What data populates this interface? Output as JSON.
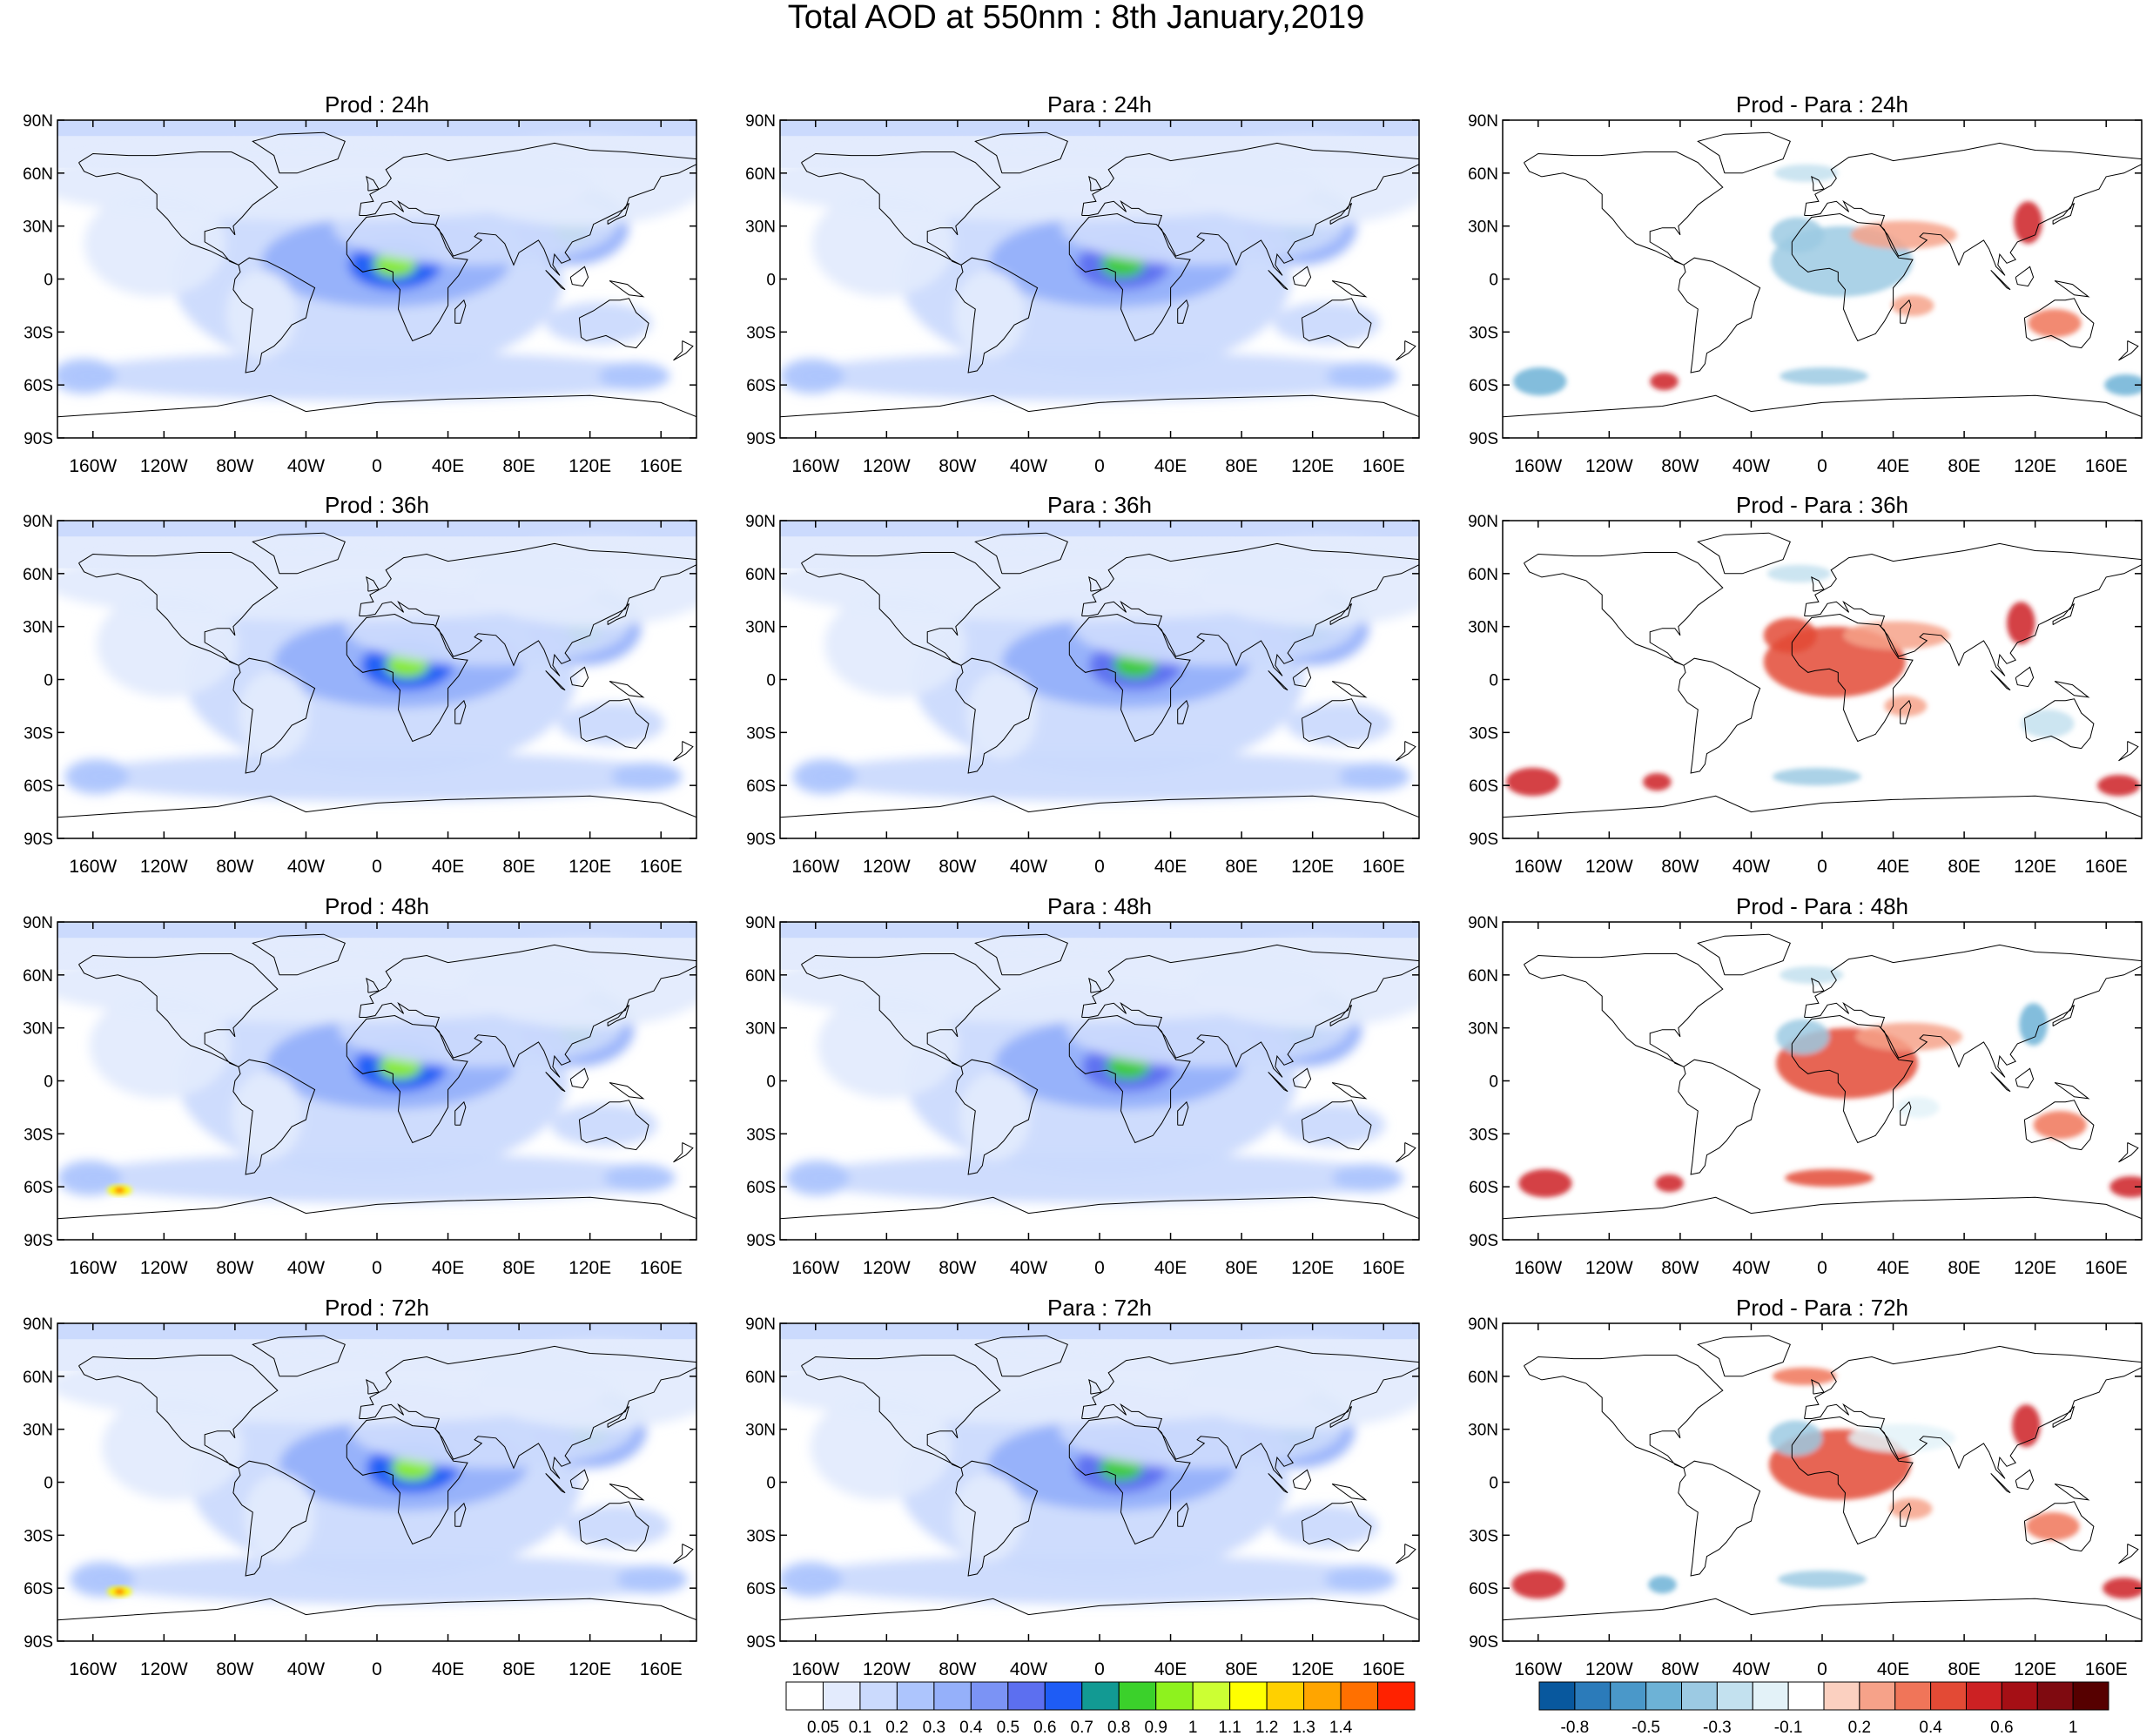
{
  "figure": {
    "title": "Total AOD at 550nm : 8th January,2019"
  },
  "panel_rows": [
    {
      "hour": "24h",
      "titles": [
        "Prod : 24h",
        "Para : 24h",
        "Prod - Para : 24h"
      ]
    },
    {
      "hour": "36h",
      "titles": [
        "Prod : 36h",
        "Para : 36h",
        "Prod - Para : 36h"
      ]
    },
    {
      "hour": "48h",
      "titles": [
        "Prod : 48h",
        "Para : 48h",
        "Prod - Para : 48h"
      ]
    },
    {
      "hour": "72h",
      "titles": [
        "Prod : 72h",
        "Para : 72h",
        "Prod - Para : 72h"
      ]
    }
  ],
  "axes": {
    "lat_labels": [
      "90N",
      "60N",
      "30N",
      "0",
      "30S",
      "60S",
      "90S"
    ],
    "lat_values": [
      90,
      60,
      30,
      0,
      -30,
      -60,
      -90
    ],
    "lon_labels": [
      "160W",
      "120W",
      "80W",
      "40W",
      "0",
      "40E",
      "80E",
      "120E",
      "160E"
    ],
    "lon_values": [
      -160,
      -120,
      -80,
      -40,
      0,
      40,
      80,
      120,
      160
    ],
    "lon_range": [
      -180,
      180
    ],
    "lat_range": [
      -90,
      90
    ]
  },
  "colorbar_aod": {
    "labels": [
      "0.05",
      "0.1",
      "0.2",
      "0.3",
      "0.4",
      "0.5",
      "0.6",
      "0.7",
      "0.8",
      "0.9",
      "1",
      "1.1",
      "1.2",
      "1.3",
      "1.4"
    ],
    "colors": [
      "#ffffff",
      "#e3ebfd",
      "#cbdafd",
      "#adc5fd",
      "#95b0fa",
      "#7b93f5",
      "#5c6ff0",
      "#1e5cf5",
      "#129a93",
      "#3bd12b",
      "#8ef21e",
      "#ccff33",
      "#ffff00",
      "#ffd000",
      "#ffa500",
      "#ff7000",
      "#ff2200"
    ]
  },
  "colorbar_diff": {
    "labels": [
      "-0.8",
      "-0.5",
      "-0.3",
      "-0.1",
      "0.2",
      "0.4",
      "0.6",
      "1"
    ],
    "colors": [
      "#08589e",
      "#2b7bba",
      "#4a98c9",
      "#6db2d6",
      "#9ccae3",
      "#c3e1ef",
      "#e3f2f8",
      "#ffffff",
      "#fbd0c0",
      "#f6a289",
      "#f07559",
      "#e34a35",
      "#cc2123",
      "#a50f15",
      "#7f0a10",
      "#560000"
    ]
  },
  "map_fill": {
    "aod_background": "#ffffff",
    "diff_background": "#ffffff",
    "coastline": "#000000"
  },
  "chart_data": {
    "type": "heatmap",
    "title": "Total AOD at 550nm : 8th January,2019",
    "rows": [
      "24h",
      "36h",
      "48h",
      "72h"
    ],
    "columns": [
      "Prod",
      "Para",
      "Prod - Para"
    ],
    "aod_levels": [
      0.05,
      0.1,
      0.2,
      0.3,
      0.4,
      0.5,
      0.6,
      0.7,
      0.8,
      0.9,
      1,
      1.1,
      1.2,
      1.3,
      1.4
    ],
    "diff_levels": [
      -0.8,
      -0.5,
      -0.3,
      -0.1,
      0.2,
      0.4,
      0.6,
      1
    ]
  }
}
